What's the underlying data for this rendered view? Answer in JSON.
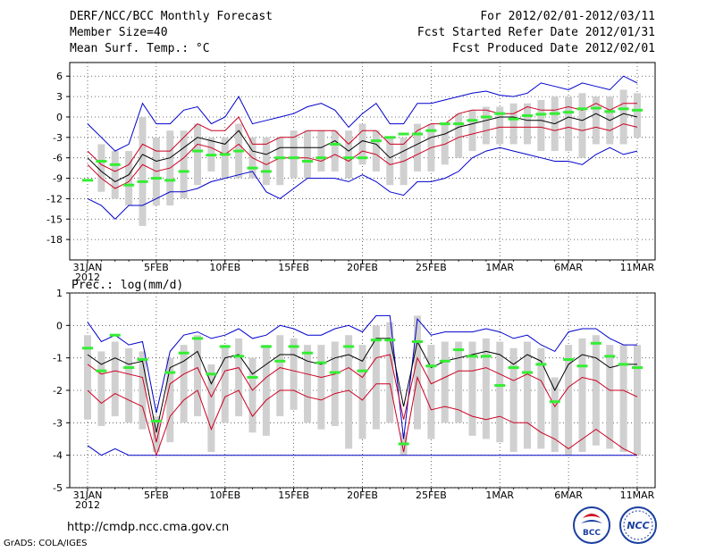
{
  "header": {
    "left": [
      "DERF/NCC/BCC Monthly Forecast",
      "Member Size=40",
      "Mean Surf. Temp.: °C"
    ],
    "right": [
      "For 2012/02/01-2012/03/11",
      "Fcst Started Refer Date 2012/01/31",
      "Fcst Produced Date 2012/02/01"
    ]
  },
  "footer": {
    "url": "http://cmdp.ncc.cma.gov.cn",
    "credit": "GrADS: COLA/IGES",
    "logo_bcc": "BCC",
    "logo_ncc": "NCC"
  },
  "colors": {
    "ensemble_max_min": "#0000cc",
    "percentile": "#cc0022",
    "mean": "#000000",
    "observed_marker": "#33ee33",
    "spread_bar": "#d0d0d0",
    "grid": "#444444"
  },
  "chart_data": [
    {
      "type": "line",
      "title": "Mean Surf. Temp.: °C",
      "x_tick_labels": [
        "31JAN",
        "5FEB",
        "10FEB",
        "15FEB",
        "20FEB",
        "25FEB",
        "1MAR",
        "6MAR",
        "11MAR"
      ],
      "x_year_label": "2012",
      "x_days": 41,
      "ylim": [
        -21,
        8
      ],
      "yticks": [
        6,
        3,
        0,
        -3,
        -6,
        -9,
        -12,
        -15,
        -18
      ],
      "series": [
        {
          "name": "max",
          "values": [
            -1,
            -3,
            -5,
            -4,
            2,
            -1,
            -1,
            1,
            1.5,
            -1,
            0,
            3,
            -1,
            -0.5,
            0,
            0.5,
            1.5,
            2,
            1,
            -1.5,
            0.5,
            2,
            -1,
            -1,
            2,
            2,
            2.5,
            3,
            3.5,
            3.8,
            3.2,
            3,
            3.5,
            5,
            4.5,
            4,
            5,
            4.5,
            4,
            6,
            5
          ]
        },
        {
          "name": "upper_percentile",
          "values": [
            -5,
            -7,
            -8,
            -7,
            -4,
            -5,
            -5,
            -3,
            -1,
            -2,
            -2,
            0,
            -4,
            -4,
            -3,
            -3,
            -2,
            -2,
            -2,
            -4,
            -2,
            -2,
            -4,
            -4,
            -2,
            -1,
            -1,
            0.5,
            1,
            1,
            0.5,
            0.5,
            1.5,
            1,
            1,
            1.5,
            1,
            2,
            1,
            2,
            2
          ]
        },
        {
          "name": "mean",
          "values": [
            -6,
            -8,
            -9.5,
            -8.5,
            -5.5,
            -6.5,
            -6,
            -4.5,
            -3,
            -3.5,
            -4,
            -2,
            -5,
            -5.5,
            -4.5,
            -4.5,
            -4.5,
            -4.5,
            -3.5,
            -5,
            -3.5,
            -4,
            -6,
            -5,
            -4,
            -3,
            -2.5,
            -1.5,
            -1,
            -0.5,
            0,
            0,
            -0.5,
            -0.5,
            -1,
            0,
            -0.5,
            0.5,
            -0.5,
            0.5,
            0
          ]
        },
        {
          "name": "lower_percentile",
          "values": [
            -7,
            -9,
            -10.5,
            -9.5,
            -7,
            -8,
            -7.5,
            -6,
            -4,
            -4.5,
            -5.5,
            -4,
            -6,
            -7,
            -6,
            -6,
            -6,
            -6.5,
            -5.5,
            -6.5,
            -5,
            -5.5,
            -7,
            -6.5,
            -5.5,
            -4.5,
            -4,
            -3,
            -2.5,
            -2,
            -1.5,
            -1.5,
            -1.5,
            -1.5,
            -2,
            -1.5,
            -2,
            -1.5,
            -2,
            -1,
            -1.5
          ]
        },
        {
          "name": "min",
          "values": [
            -12,
            -13,
            -15,
            -13,
            -13,
            -12,
            -11,
            -11,
            -10.5,
            -9.5,
            -9,
            -8.5,
            -8,
            -11,
            -12,
            -10.5,
            -9,
            -9,
            -9,
            -9.5,
            -8.5,
            -9.5,
            -11,
            -11.5,
            -9.5,
            -9.5,
            -9,
            -8,
            -6,
            -5,
            -4.5,
            -5,
            -5.5,
            -6,
            -6.5,
            -6.5,
            -7,
            -5.5,
            -4.5,
            -5.5,
            -5
          ]
        },
        {
          "name": "spread_high",
          "values": [
            null,
            -4,
            -5,
            -5,
            0,
            -3,
            -2,
            -2,
            -1,
            -3,
            -3,
            -1,
            -3,
            -3,
            -3,
            -2,
            -2,
            -2,
            -2,
            -2,
            -1,
            -2,
            -3,
            -3,
            -1,
            -1,
            -1,
            0.5,
            1,
            1.5,
            1.5,
            2,
            2,
            2.5,
            3,
            3,
            3.5,
            3,
            3,
            4,
            3.5
          ]
        },
        {
          "name": "spread_low",
          "values": [
            null,
            -11,
            -12,
            -13,
            -16,
            -13,
            -13,
            -12,
            -10,
            -8,
            -9,
            -9,
            -9,
            -10,
            -10,
            -9,
            -9,
            -8,
            -8,
            -9,
            -7,
            -8,
            -10,
            -10,
            -8,
            -8,
            -7,
            -6,
            -5,
            -4,
            -4,
            -4,
            -4,
            -5,
            -5,
            -5,
            -6,
            -4,
            -4,
            -4,
            -3
          ]
        },
        {
          "name": "observed",
          "values": [
            -9.3,
            -6.5,
            -7,
            -10,
            -9.5,
            -9,
            -9.3,
            -8,
            -5,
            -5.6,
            -5.5,
            -5,
            -7.5,
            -8,
            -6,
            -6,
            -6.5,
            -6,
            -4,
            -6,
            -6,
            -3.5,
            -3,
            -2.5,
            -2.5,
            -2,
            -1,
            -1,
            -0.5,
            0,
            0.5,
            -0.3,
            0.2,
            0.4,
            0.5,
            0.7,
            1.2,
            1.3,
            0.8,
            1.2,
            1
          ]
        }
      ]
    },
    {
      "type": "line",
      "title": "Prec.: log(mm/d)",
      "x_tick_labels": [
        "31JAN",
        "5FEB",
        "10FEB",
        "15FEB",
        "20FEB",
        "25FEB",
        "1MAR",
        "6MAR",
        "11MAR"
      ],
      "x_year_label": "2012",
      "x_days": 41,
      "ylim": [
        -5,
        1
      ],
      "yticks": [
        1,
        0,
        -1,
        -2,
        -3,
        -4,
        -5
      ],
      "series": [
        {
          "name": "max",
          "values": [
            0.1,
            -0.5,
            -0.3,
            -0.6,
            -0.5,
            -2.7,
            -0.8,
            -0.3,
            -0.2,
            -0.4,
            -0.3,
            -0.1,
            -0.4,
            -0.3,
            0,
            -0.1,
            -0.3,
            -0.3,
            -0.1,
            0,
            -0.2,
            0.3,
            0.3,
            -3.5,
            0.2,
            -0.3,
            -0.2,
            -0.2,
            -0.2,
            -0.1,
            -0.2,
            -0.4,
            -0.3,
            -0.6,
            -0.8,
            -0.2,
            -0.1,
            -0.1,
            -0.4,
            -0.6,
            -0.6
          ]
        },
        {
          "name": "mean",
          "values": [
            -0.9,
            -1.2,
            -1.0,
            -1.2,
            -1.1,
            -3.3,
            -1.3,
            -1.1,
            -0.8,
            -1.8,
            -1.0,
            -0.9,
            -1.5,
            -1.2,
            -0.9,
            -0.9,
            -1.1,
            -1.2,
            -1.0,
            -0.9,
            -1.1,
            -0.4,
            -0.4,
            -2.5,
            -0.5,
            -1.3,
            -1.1,
            -1.0,
            -0.9,
            -0.8,
            -0.9,
            -1.2,
            -0.9,
            -1.1,
            -2.0,
            -1.2,
            -0.9,
            -1.0,
            -1.3,
            -1.2,
            -1.2
          ]
        },
        {
          "name": "upper_percentile",
          "values": [
            -1.2,
            -1.5,
            -1.4,
            -1.5,
            -1.6,
            -3.6,
            -1.8,
            -1.5,
            -1.3,
            -2.2,
            -1.4,
            -1.3,
            -2.0,
            -1.6,
            -1.3,
            -1.4,
            -1.5,
            -1.6,
            -1.5,
            -1.3,
            -1.6,
            -1.0,
            -0.9,
            -2.9,
            -1.0,
            -1.8,
            -1.6,
            -1.4,
            -1.4,
            -1.3,
            -1.5,
            -1.7,
            -1.5,
            -1.7,
            -2.5,
            -1.9,
            -1.6,
            -1.7,
            -2.0,
            -2.0,
            -2.2
          ]
        },
        {
          "name": "lower_percentile",
          "values": [
            -2.0,
            -2.4,
            -2.1,
            -2.3,
            -2.5,
            -4.0,
            -2.8,
            -2.3,
            -2.0,
            -3.2,
            -2.2,
            -2.0,
            -2.8,
            -2.3,
            -2.0,
            -2.0,
            -2.2,
            -2.3,
            -2.1,
            -2.0,
            -2.3,
            -1.8,
            -1.8,
            -3.9,
            -1.6,
            -2.6,
            -2.5,
            -2.6,
            -2.8,
            -2.9,
            -2.8,
            -3.0,
            -3.0,
            -3.3,
            -3.5,
            -3.8,
            -3.5,
            -3.2,
            -3.5,
            -3.8,
            -4.0
          ]
        },
        {
          "name": "min",
          "values": [
            -3.7,
            -4.0,
            -3.8,
            -4.0,
            -4.0,
            -4.0,
            -4.0,
            -4.0,
            -4.0,
            -4.0,
            -4.0,
            -4.0,
            -4.0,
            -4.0,
            -4.0,
            -4.0,
            -4.0,
            -4.0,
            -4.0,
            -4.0,
            -4.0,
            -4.0,
            -4.0,
            -4.0,
            -4.0,
            -4.0,
            -4.0,
            -4.0,
            -4.0,
            -4.0,
            -4.0,
            -4.0,
            -4.0,
            -4.0,
            -4.0,
            -4.0,
            -4.0,
            -4.0,
            -4.0,
            -4.0,
            -4.0
          ]
        },
        {
          "name": "spread_high",
          "values": [
            -0.3,
            -0.8,
            -0.5,
            -0.7,
            -0.8,
            -2.8,
            -1.0,
            -0.6,
            -0.3,
            -1.2,
            -0.6,
            -0.4,
            -1.0,
            -0.6,
            -0.3,
            -0.4,
            -0.6,
            -0.6,
            -0.5,
            -0.3,
            -0.6,
            0.0,
            0.1,
            -3.3,
            0.3,
            -0.6,
            -0.5,
            -0.5,
            -0.5,
            -0.4,
            -0.5,
            -0.7,
            -0.5,
            -0.7,
            -1.6,
            -0.6,
            -0.4,
            -0.3,
            -0.6,
            -0.6,
            -0.6
          ]
        },
        {
          "name": "spread_low",
          "values": [
            -2.9,
            -3.1,
            -2.8,
            -3.0,
            -3.2,
            -3.9,
            -3.6,
            -3.0,
            -2.8,
            -3.9,
            -3.0,
            -2.8,
            -3.3,
            -3.4,
            -2.8,
            -2.6,
            -3.0,
            -3.2,
            -3.1,
            -3.8,
            -3.5,
            -3.2,
            -3.0,
            -4.0,
            -3.2,
            -3.5,
            -3.0,
            -3.0,
            -3.4,
            -3.5,
            -3.6,
            -3.9,
            -3.8,
            -3.8,
            -3.9,
            -4.0,
            -3.9,
            -3.7,
            -3.8,
            -3.9,
            -4.0
          ]
        },
        {
          "name": "observed",
          "values": [
            -0.7,
            -1.4,
            -0.3,
            -1.3,
            -1.05,
            -2.95,
            -1.45,
            -0.85,
            -0.4,
            -1.5,
            -0.65,
            -0.95,
            -1.6,
            -0.65,
            -1.1,
            -0.65,
            -0.85,
            -1.15,
            -1.45,
            -0.65,
            -1.4,
            -0.45,
            -0.45,
            -3.65,
            -0.5,
            -1.25,
            -1.1,
            -0.75,
            -0.95,
            -0.95,
            -1.85,
            -1.3,
            -1.45,
            -1.2,
            -2.35,
            -1.05,
            -1.25,
            -0.55,
            -0.95,
            -1.2,
            -1.3
          ]
        }
      ]
    }
  ]
}
